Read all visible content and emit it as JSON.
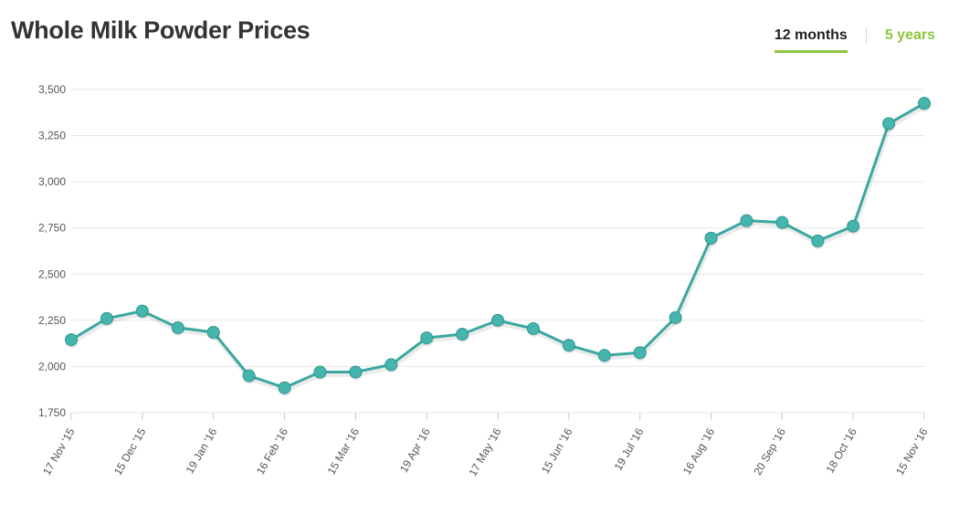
{
  "header": {
    "title": "Whole Milk Powder Prices"
  },
  "range_tabs": [
    {
      "label": "12 months",
      "active": true
    },
    {
      "label": "5 years",
      "active": false
    }
  ],
  "colors": {
    "line": "#3aa8a0",
    "marker": "#45b5ad",
    "accent": "#8cc63f",
    "grid": "#e6e6e6"
  },
  "chart_data": {
    "type": "line",
    "title": "Whole Milk Powder Prices",
    "xlabel": "",
    "ylabel": "",
    "ylim": [
      1750,
      3500
    ],
    "yticks": [
      1750,
      2000,
      2250,
      2500,
      2750,
      3000,
      3250,
      3500
    ],
    "ytick_labels": [
      "1,750",
      "2,000",
      "2,250",
      "2,500",
      "2,750",
      "3,000",
      "3,250",
      "3,500"
    ],
    "grid": "horizontal",
    "x_tick_labels": [
      "17 Nov '15",
      "15 Dec '15",
      "19 Jan '16",
      "16 Feb '16",
      "15 Mar '16",
      "19 Apr '16",
      "17 May '16",
      "15 Jun '16",
      "19 Jul '16",
      "16 Aug '16",
      "20 Sep '16",
      "18 Oct '16",
      "15 Nov '16"
    ],
    "series": [
      {
        "values": [
          2145,
          2260,
          2300,
          2210,
          2185,
          1950,
          1885,
          1970,
          1970,
          2010,
          2155,
          2175,
          2250,
          2205,
          2115,
          2060,
          2075,
          2265,
          2695,
          2790,
          2780,
          2680,
          2760,
          3315,
          3425
        ]
      }
    ]
  }
}
